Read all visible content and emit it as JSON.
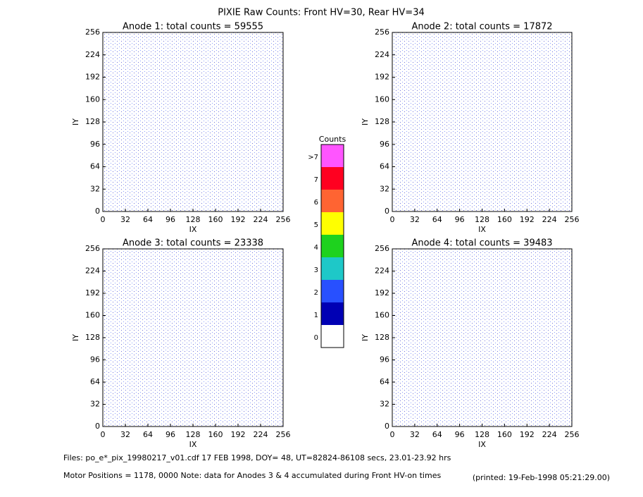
{
  "title": "PIXIE Raw Counts:  Front HV=30, Rear HV=34",
  "chart_data": [
    {
      "type": "heatmap",
      "title": "Anode 1: total counts = 59555",
      "xlabel": "IX",
      "ylabel": "IY",
      "xlim": [
        0,
        256
      ],
      "ylim": [
        0,
        256
      ],
      "xticks": [
        0,
        32,
        64,
        96,
        128,
        160,
        192,
        224,
        256
      ],
      "yticks": [
        0,
        32,
        64,
        96,
        128,
        160,
        192,
        224,
        256
      ]
    },
    {
      "type": "heatmap",
      "title": "Anode 2: total counts = 17872",
      "xlabel": "IX",
      "ylabel": "IY",
      "xlim": [
        0,
        256
      ],
      "ylim": [
        0,
        256
      ],
      "xticks": [
        0,
        32,
        64,
        96,
        128,
        160,
        192,
        224,
        256
      ],
      "yticks": [
        0,
        32,
        64,
        96,
        128,
        160,
        192,
        224,
        256
      ]
    },
    {
      "type": "heatmap",
      "title": "Anode 3: total counts = 23338",
      "xlabel": "IX",
      "ylabel": "IY",
      "xlim": [
        0,
        256
      ],
      "ylim": [
        0,
        256
      ],
      "xticks": [
        0,
        32,
        64,
        96,
        128,
        160,
        192,
        224,
        256
      ],
      "yticks": [
        0,
        32,
        64,
        96,
        128,
        160,
        192,
        224,
        256
      ]
    },
    {
      "type": "heatmap",
      "title": "Anode 4: total counts = 39483",
      "xlabel": "IX",
      "ylabel": "IY",
      "xlim": [
        0,
        256
      ],
      "ylim": [
        0,
        256
      ],
      "xticks": [
        0,
        32,
        64,
        96,
        128,
        160,
        192,
        224,
        256
      ],
      "yticks": [
        0,
        32,
        64,
        96,
        128,
        160,
        192,
        224,
        256
      ]
    }
  ],
  "colorbar": {
    "title": "Counts",
    "levels": [
      {
        "label": "0",
        "color": "#ffffff"
      },
      {
        "label": "1",
        "color": "#0000b4"
      },
      {
        "label": "2",
        "color": "#2850ff"
      },
      {
        "label": "3",
        "color": "#1ec8c8"
      },
      {
        "label": "4",
        "color": "#1ed21e"
      },
      {
        "label": "5",
        "color": "#ffff00"
      },
      {
        "label": "6",
        "color": "#ff6432"
      },
      {
        "label": "7",
        "color": "#ff0020"
      },
      {
        "label": ">7",
        "color": "#ff55ff"
      }
    ]
  },
  "footer": {
    "files": "Files: po_e*_pix_19980217_v01.cdf    17 FEB 1998, DOY= 48, UT=82824-86108 secs, 23.01-23.92 hrs",
    "motor": "Motor Positions = 1178, 0000   Note: data for Anodes 3 & 4 accumulated during Front HV-on times",
    "printed": "(printed: 19-Feb-1998 05:21:29.00)"
  }
}
